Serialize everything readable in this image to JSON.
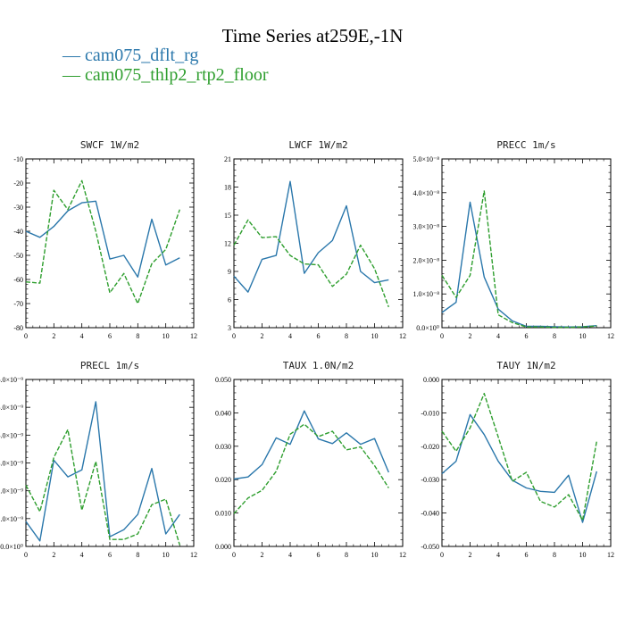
{
  "title": "Time Series at259E,-1N",
  "legend": [
    {
      "name": "cam075_dflt_rg",
      "color": "#2a77ab",
      "dash": "solid"
    },
    {
      "name": "cam075_thlp2_rtp2_floor",
      "color": "#2e9e2e",
      "dash": "dashed"
    }
  ],
  "chart_data": [
    {
      "type": "line",
      "title": "SWCF  1W/m2",
      "xlim": [
        0,
        12
      ],
      "xticks": [
        "0",
        "2",
        "4",
        "6",
        "8",
        "10",
        "12"
      ],
      "ylim": [
        -80,
        -10
      ],
      "yticks": [
        "-80",
        "-70",
        "-60",
        "-50",
        "-40",
        "-30",
        "-20",
        "-10"
      ],
      "x": [
        0,
        1,
        2,
        3,
        4,
        5,
        6,
        7,
        8,
        9,
        10,
        11
      ],
      "series": [
        {
          "name": "cam075_dflt_rg",
          "values": [
            -40,
            -42.5,
            -38,
            -31.5,
            -28.2,
            -27.5,
            -51.5,
            -50,
            -59,
            -35,
            -54,
            -51
          ]
        },
        {
          "name": "cam075_thlp2_rtp2_floor",
          "values": [
            -61,
            -61.5,
            -23,
            -31,
            -19,
            -40,
            -65.5,
            -57.5,
            -70,
            -53.5,
            -47.5,
            -31
          ]
        }
      ]
    },
    {
      "type": "line",
      "title": "LWCF  1W/m2",
      "xlim": [
        0,
        12
      ],
      "xticks": [
        "0",
        "2",
        "4",
        "6",
        "8",
        "10",
        "12"
      ],
      "ylim": [
        3,
        21
      ],
      "yticks": [
        "3",
        "6",
        "9",
        "12",
        "15",
        "18",
        "21"
      ],
      "x": [
        0,
        1,
        2,
        3,
        4,
        5,
        6,
        7,
        8,
        9,
        10,
        11
      ],
      "series": [
        {
          "name": "cam075_dflt_rg",
          "values": [
            8.5,
            6.8,
            10.3,
            10.7,
            18.6,
            8.8,
            11,
            12.3,
            16,
            9,
            7.8,
            8.1
          ]
        },
        {
          "name": "cam075_thlp2_rtp2_floor",
          "values": [
            11.8,
            14.5,
            12.6,
            12.7,
            10.7,
            9.8,
            9.7,
            7.4,
            8.7,
            11.8,
            9.3,
            5.2
          ]
        }
      ]
    },
    {
      "type": "line",
      "title": "PRECC  1m/s",
      "xlim": [
        0,
        12
      ],
      "xticks": [
        "0",
        "2",
        "4",
        "6",
        "8",
        "10",
        "12"
      ],
      "ylim": [
        0,
        5e-08
      ],
      "yticks": [
        "0.0×10⁰",
        "1.0×10⁻⁸",
        "2.0×10⁻⁸",
        "3.0×10⁻⁸",
        "4.0×10⁻⁸",
        "5.0×10⁻⁸"
      ],
      "x": [
        0,
        1,
        2,
        3,
        4,
        5,
        6,
        7,
        8,
        9,
        10,
        11
      ],
      "series": [
        {
          "name": "cam075_dflt_rg",
          "values": [
            4.5e-09,
            7.5e-09,
            3.72e-08,
            1.5e-08,
            5.5e-09,
            2e-09,
            4e-10,
            4e-10,
            3e-10,
            2e-10,
            3e-10,
            6e-10
          ]
        },
        {
          "name": "cam075_thlp2_rtp2_floor",
          "values": [
            1.55e-08,
            9e-09,
            1.55e-08,
            4.05e-08,
            3.8e-09,
            1.5e-09,
            2e-10,
            2e-10,
            1e-10,
            1e-10,
            2e-10,
            5e-10
          ]
        }
      ]
    },
    {
      "type": "line",
      "title": "PRECL  1m/s",
      "xlim": [
        0,
        12
      ],
      "xticks": [
        "0",
        "2",
        "4",
        "6",
        "8",
        "10",
        "12"
      ],
      "ylim": [
        0,
        6e-09
      ],
      "yticks": [
        "0.0×10⁰",
        "1.0×10⁻⁹",
        "2.0×10⁻⁹",
        "3.0×10⁻⁹",
        "4.0×10⁻⁹",
        "5.0×10⁻⁹",
        "6.0×10⁻⁹"
      ],
      "x": [
        0,
        1,
        2,
        3,
        4,
        5,
        6,
        7,
        8,
        9,
        10,
        11
      ],
      "series": [
        {
          "name": "cam075_dflt_rg",
          "values": [
            9e-10,
            2e-10,
            3.1e-09,
            2.5e-09,
            2.75e-09,
            5.2e-09,
            3.5e-10,
            6e-10,
            1.15e-09,
            2.8e-09,
            4.5e-10,
            1.15e-09
          ]
        },
        {
          "name": "cam075_thlp2_rtp2_floor",
          "values": [
            2.2e-09,
            1.25e-09,
            3.2e-09,
            4.2e-09,
            1.3e-09,
            3.05e-09,
            2.5e-10,
            2.5e-10,
            4.5e-10,
            1.5e-09,
            1.7e-09,
            5e-11
          ]
        }
      ]
    },
    {
      "type": "line",
      "title": "TAUX  1.0N/m2",
      "xlim": [
        0,
        12
      ],
      "xticks": [
        "0",
        "2",
        "4",
        "6",
        "8",
        "10",
        "12"
      ],
      "ylim": [
        0,
        0.05
      ],
      "yticks": [
        "0.000",
        "0.010",
        "0.020",
        "0.030",
        "0.040",
        "0.050"
      ],
      "x": [
        0,
        1,
        2,
        3,
        4,
        5,
        6,
        7,
        8,
        9,
        10,
        11
      ],
      "series": [
        {
          "name": "cam075_dflt_rg",
          "values": [
            0.0202,
            0.0208,
            0.0245,
            0.0325,
            0.0306,
            0.0406,
            0.0322,
            0.0308,
            0.034,
            0.0306,
            0.0323,
            0.0222
          ]
        },
        {
          "name": "cam075_thlp2_rtp2_floor",
          "values": [
            0.0098,
            0.0145,
            0.0168,
            0.0225,
            0.0336,
            0.0366,
            0.0329,
            0.0345,
            0.0289,
            0.0298,
            0.0242,
            0.0175
          ]
        }
      ]
    },
    {
      "type": "line",
      "title": "TAUY  1N/m2",
      "xlim": [
        0,
        12
      ],
      "xticks": [
        "0",
        "2",
        "4",
        "6",
        "8",
        "10",
        "12"
      ],
      "ylim": [
        -0.05,
        0
      ],
      "yticks": [
        "-0.050",
        "-0.040",
        "-0.030",
        "-0.020",
        "-0.010",
        "0.000"
      ],
      "x": [
        0,
        1,
        2,
        3,
        4,
        5,
        6,
        7,
        8,
        9,
        10,
        11
      ],
      "series": [
        {
          "name": "cam075_dflt_rg",
          "values": [
            -0.0282,
            -0.0245,
            -0.0105,
            -0.0165,
            -0.0245,
            -0.0302,
            -0.0325,
            -0.0335,
            -0.0338,
            -0.0287,
            -0.0428,
            -0.0275
          ]
        },
        {
          "name": "cam075_thlp2_rtp2_floor",
          "values": [
            -0.0155,
            -0.0215,
            -0.0145,
            -0.0042,
            -0.0172,
            -0.0305,
            -0.0278,
            -0.0365,
            -0.0382,
            -0.0345,
            -0.0422,
            -0.0185
          ]
        }
      ]
    }
  ]
}
